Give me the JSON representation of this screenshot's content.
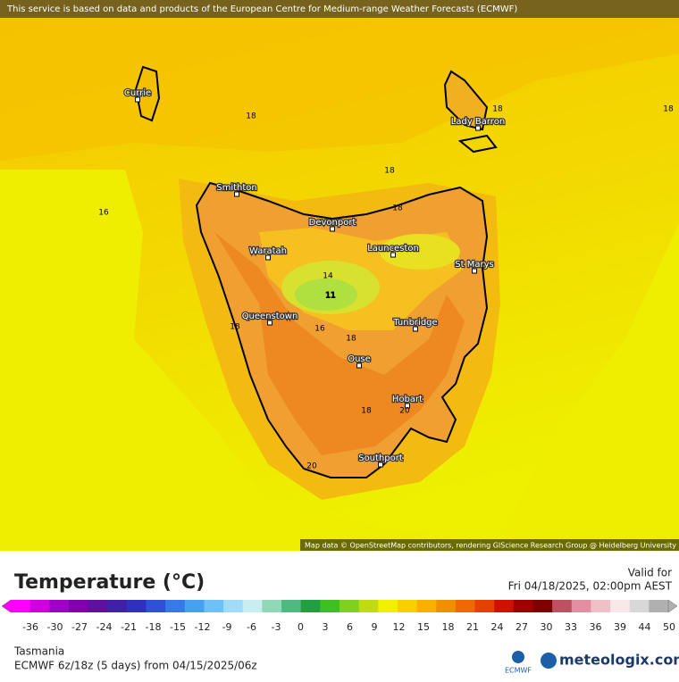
{
  "banner": "This service is based on data and products of the European Centre for Medium-range Weather Forecasts (ECMWF)",
  "map": {
    "places": [
      "Currie",
      "Lady Barron",
      "Smithton",
      "Devonport",
      "Waratah",
      "Launceston",
      "St Marys",
      "Queenstown",
      "Tunbridge",
      "Ouse",
      "Hobart",
      "Southport"
    ],
    "contour_labels": [
      18,
      18,
      18,
      18,
      16,
      18,
      14,
      11,
      18,
      16,
      18,
      18,
      20,
      20
    ],
    "attribution": "Map data © OpenStreetMap contributors, rendering GIScience Research Group @ Heidelberg University"
  },
  "legend": {
    "title": "Temperature (°C)",
    "valid_label": "Valid for",
    "valid_time": "Fri 04/18/2025, 02:00pm AEST",
    "ticks": [
      -36,
      -30,
      -27,
      -24,
      -21,
      -18,
      -15,
      -12,
      -9,
      -6,
      -3,
      0,
      3,
      6,
      9,
      12,
      15,
      18,
      21,
      24,
      27,
      30,
      33,
      36,
      39,
      44,
      50
    ],
    "colors": [
      "#ff00ff",
      "#d000e0",
      "#a000c8",
      "#8000b0",
      "#6010a0",
      "#4020a8",
      "#3030c0",
      "#3050d8",
      "#3878e8",
      "#48a0f0",
      "#70c0f8",
      "#a0dcf8",
      "#c8eef0",
      "#90d8b8",
      "#50b880",
      "#20a040",
      "#40c020",
      "#80d020",
      "#c0dc10",
      "#f0f000",
      "#f8d000",
      "#f8b000",
      "#f09000",
      "#f06800",
      "#e84000",
      "#d01000",
      "#a00000",
      "#800000",
      "#c05060",
      "#e090a0",
      "#f0c0c8",
      "#f8e8e8",
      "#d8d8d8",
      "#b0b0b0"
    ]
  },
  "footer": {
    "region": "Tasmania",
    "model": "ECMWF 6z/18z (5 days) from 04/15/2025/06z",
    "ecmwf_logo": "ECMWF",
    "brand": "meteologix.com"
  }
}
